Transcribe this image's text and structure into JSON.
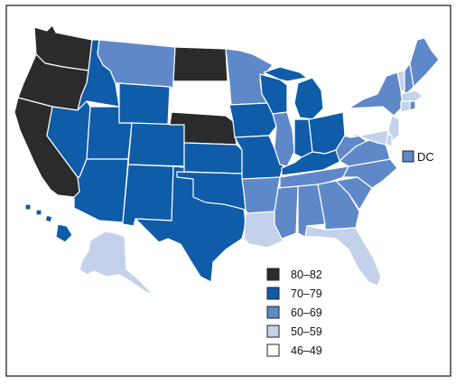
{
  "palette": {
    "c80_82": "#2b2b2b",
    "c70_79": "#0f5ca8",
    "c60_69": "#5f88c8",
    "c50_59": "#c3d2ea",
    "c46_49": "#ffffff",
    "state_border": "#ffffff",
    "frame_border": "#333333"
  },
  "legend": {
    "items": [
      {
        "label": "80–82",
        "color_key": "c80_82"
      },
      {
        "label": "70–79",
        "color_key": "c70_79"
      },
      {
        "label": "60–69",
        "color_key": "c60_69"
      },
      {
        "label": "50–59",
        "color_key": "c50_59"
      },
      {
        "label": "46–49",
        "color_key": "c46_49"
      }
    ]
  },
  "dc": {
    "label": "DC",
    "color_key": "c60_69"
  }
}
